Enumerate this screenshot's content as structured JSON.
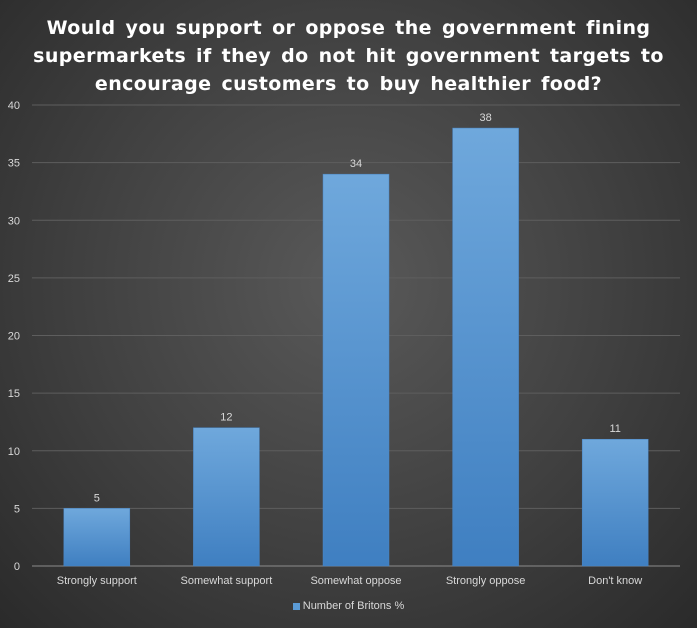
{
  "chart_data": {
    "type": "bar",
    "title": "Would you support or oppose the government fining supermarkets if they do not hit government targets to encourage customers to buy healthier food?",
    "categories": [
      "Strongly support",
      "Somewhat support",
      "Somewhat oppose",
      "Strongly oppose",
      "Don't know"
    ],
    "series": [
      {
        "name": "Number of Britons %",
        "values": [
          5,
          12,
          34,
          38,
          11
        ],
        "color": "#5b9bd5"
      }
    ],
    "ylim": [
      0,
      40
    ],
    "yticks": [
      0,
      5,
      10,
      15,
      20,
      25,
      30,
      35,
      40
    ],
    "grid": true,
    "legend": "bottom",
    "xlabel": "",
    "ylabel": ""
  }
}
